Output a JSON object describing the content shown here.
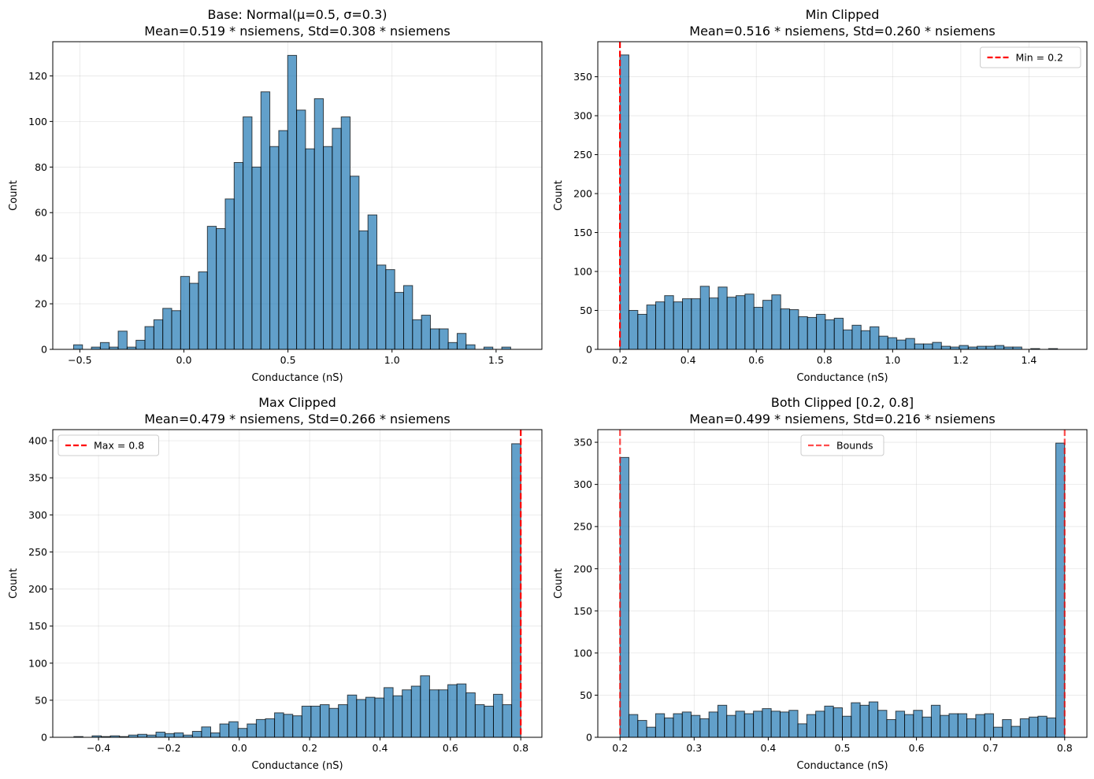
{
  "chart_data": [
    {
      "type": "bar",
      "title": "Base: Normal(μ=0.5, σ=0.3)",
      "subtitle": "Mean=0.519 * nsiemens, Std=0.308 * nsiemens",
      "xlabel": "Conductance (nS)",
      "ylabel": "Count",
      "xlim": [
        -0.63,
        1.72
      ],
      "ylim": [
        0,
        135
      ],
      "xticks": [
        -0.5,
        0.0,
        0.5,
        1.0,
        1.5
      ],
      "xtick_labels": [
        "−0.5",
        "0.0",
        "0.5",
        "1.0",
        "1.5"
      ],
      "yticks": [
        0,
        20,
        40,
        60,
        80,
        100,
        120
      ],
      "grid": true,
      "bar_color": "#1f77b4",
      "bin_start": -0.53,
      "bin_width": 0.04286,
      "values": [
        2,
        0,
        1,
        3,
        1,
        8,
        1,
        4,
        10,
        13,
        18,
        17,
        32,
        29,
        34,
        54,
        53,
        66,
        82,
        102,
        80,
        113,
        89,
        96,
        129,
        105,
        88,
        110,
        89,
        97,
        102,
        76,
        52,
        59,
        37,
        35,
        25,
        28,
        13,
        15,
        9,
        9,
        3,
        7,
        2,
        0,
        1,
        0,
        1
      ],
      "vlines": [],
      "legend": []
    },
    {
      "type": "bar",
      "title": "Min Clipped",
      "subtitle": "Mean=0.516 * nsiemens, Std=0.260 * nsiemens",
      "xlabel": "Conductance (nS)",
      "ylabel": "Count",
      "xlim": [
        0.135,
        1.57
      ],
      "ylim": [
        0,
        395
      ],
      "xticks": [
        0.2,
        0.4,
        0.6,
        0.8,
        1.0,
        1.2,
        1.4
      ],
      "xtick_labels": [
        "0.2",
        "0.4",
        "0.6",
        "0.8",
        "1.0",
        "1.2",
        "1.4"
      ],
      "yticks": [
        0,
        50,
        100,
        150,
        200,
        250,
        300,
        350
      ],
      "grid": true,
      "bar_color": "#1f77b4",
      "bin_start": 0.2,
      "bin_width": 0.0262,
      "values": [
        378,
        50,
        45,
        57,
        61,
        69,
        61,
        65,
        65,
        81,
        66,
        80,
        67,
        69,
        71,
        54,
        63,
        70,
        52,
        51,
        42,
        41,
        45,
        38,
        40,
        25,
        31,
        24,
        29,
        17,
        15,
        12,
        14,
        7,
        7,
        9,
        4,
        3,
        5,
        3,
        4,
        4,
        5,
        3,
        3,
        0,
        1,
        0,
        1
      ],
      "vlines": [
        {
          "x": 0.2,
          "color": "#ff0000",
          "dashed": true
        }
      ],
      "legend": [
        {
          "label": "Min = 0.2",
          "color": "#ff0000",
          "position": "top-right"
        }
      ]
    },
    {
      "type": "bar",
      "title": "Max Clipped",
      "subtitle": "Mean=0.479 * nsiemens, Std=0.266 * nsiemens",
      "xlabel": "Conductance (nS)",
      "ylabel": "Count",
      "xlim": [
        -0.53,
        0.86
      ],
      "ylim": [
        0,
        415
      ],
      "xticks": [
        -0.4,
        -0.2,
        0.0,
        0.2,
        0.4,
        0.6,
        0.8
      ],
      "xtick_labels": [
        "−0.4",
        "−0.2",
        "0.0",
        "0.2",
        "0.4",
        "0.6",
        "0.8"
      ],
      "yticks": [
        0,
        50,
        100,
        150,
        200,
        250,
        300,
        350,
        400
      ],
      "grid": true,
      "bar_color": "#1f77b4",
      "bin_start": -0.47,
      "bin_width": 0.02592,
      "values": [
        1,
        0,
        2,
        1,
        2,
        1,
        3,
        4,
        3,
        7,
        5,
        6,
        3,
        8,
        14,
        6,
        18,
        21,
        12,
        18,
        24,
        25,
        33,
        31,
        29,
        42,
        42,
        44,
        39,
        44,
        57,
        51,
        54,
        53,
        67,
        56,
        64,
        69,
        83,
        64,
        64,
        71,
        72,
        60,
        44,
        42,
        58,
        44,
        396
      ],
      "vlines": [
        {
          "x": 0.8,
          "color": "#ff0000",
          "dashed": true
        }
      ],
      "legend": [
        {
          "label": "Max = 0.8",
          "color": "#ff0000",
          "position": "top-left"
        }
      ]
    },
    {
      "type": "bar",
      "title": "Both Clipped [0.2, 0.8]",
      "subtitle": "Mean=0.499 * nsiemens, Std=0.216 * nsiemens",
      "xlabel": "Conductance (nS)",
      "ylabel": "Count",
      "xlim": [
        0.17,
        0.83
      ],
      "ylim": [
        0,
        365
      ],
      "xticks": [
        0.2,
        0.3,
        0.4,
        0.5,
        0.6,
        0.7,
        0.8
      ],
      "xtick_labels": [
        "0.2",
        "0.3",
        "0.4",
        "0.5",
        "0.6",
        "0.7",
        "0.8"
      ],
      "yticks": [
        0,
        50,
        100,
        150,
        200,
        250,
        300,
        350
      ],
      "grid": true,
      "bar_color": "#1f77b4",
      "bin_start": 0.2,
      "bin_width": 0.012,
      "values": [
        332,
        27,
        20,
        12,
        28,
        23,
        28,
        30,
        26,
        22,
        30,
        38,
        26,
        31,
        28,
        31,
        34,
        31,
        30,
        32,
        16,
        27,
        31,
        37,
        35,
        25,
        41,
        38,
        42,
        32,
        21,
        31,
        27,
        32,
        24,
        38,
        26,
        28,
        28,
        22,
        27,
        28,
        12,
        21,
        13,
        22,
        24,
        25,
        23,
        349
      ],
      "vlines": [
        {
          "x": 0.2,
          "color": "#ff0000",
          "dashed": true,
          "alpha": 0.7
        },
        {
          "x": 0.8,
          "color": "#ff0000",
          "dashed": true,
          "alpha": 0.7
        }
      ],
      "legend": [
        {
          "label": "Bounds",
          "color": "#ff0000",
          "position": "top-center"
        }
      ]
    }
  ]
}
